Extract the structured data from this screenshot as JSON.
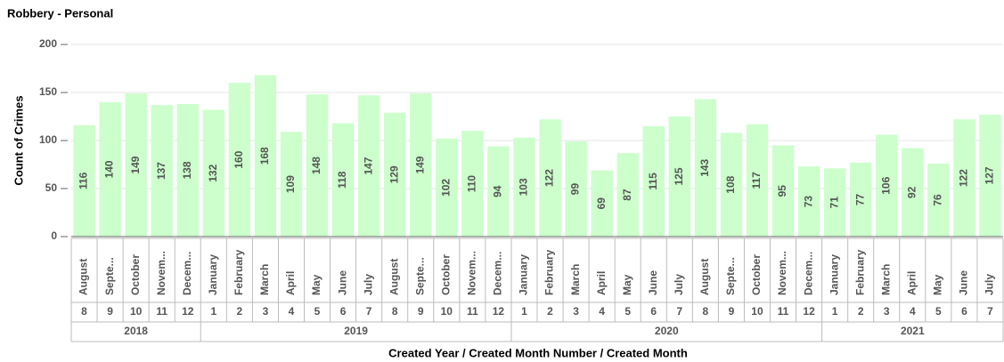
{
  "chart_data": {
    "type": "bar",
    "title": "Robbery - Personal",
    "y_label": "Count of Crimes",
    "x_label": "Created Year / Created Month Number / Created Month",
    "categories": [
      "August",
      "Septe...",
      "October",
      "Novem...",
      "Decem...",
      "January",
      "February",
      "March",
      "April",
      "May",
      "June",
      "July",
      "August",
      "Septe...",
      "October",
      "Novem...",
      "Decem...",
      "January",
      "February",
      "March",
      "April",
      "May",
      "June",
      "July",
      "August",
      "Septe...",
      "October",
      "Novem...",
      "Decem...",
      "January",
      "February",
      "March",
      "April",
      "May",
      "June",
      "July"
    ],
    "month_numbers": [
      8,
      9,
      10,
      11,
      12,
      1,
      2,
      3,
      4,
      5,
      6,
      7,
      8,
      9,
      10,
      11,
      12,
      1,
      2,
      3,
      4,
      5,
      6,
      7,
      8,
      9,
      10,
      11,
      12,
      1,
      2,
      3,
      4,
      5,
      6,
      7
    ],
    "years": [
      "2018",
      "2019",
      "2020",
      "2021"
    ],
    "values": [
      116,
      140,
      149,
      137,
      138,
      132,
      160,
      168,
      109,
      148,
      118,
      147,
      129,
      149,
      102,
      110,
      94,
      103,
      122,
      99,
      69,
      87,
      115,
      125,
      143,
      108,
      117,
      95,
      73,
      71,
      77,
      106,
      92,
      76,
      122,
      127
    ],
    "color": "#ccffcc",
    "ylim": [
      0,
      200
    ],
    "yticks": [
      0,
      50,
      100,
      150,
      200
    ],
    "grid": true
  }
}
